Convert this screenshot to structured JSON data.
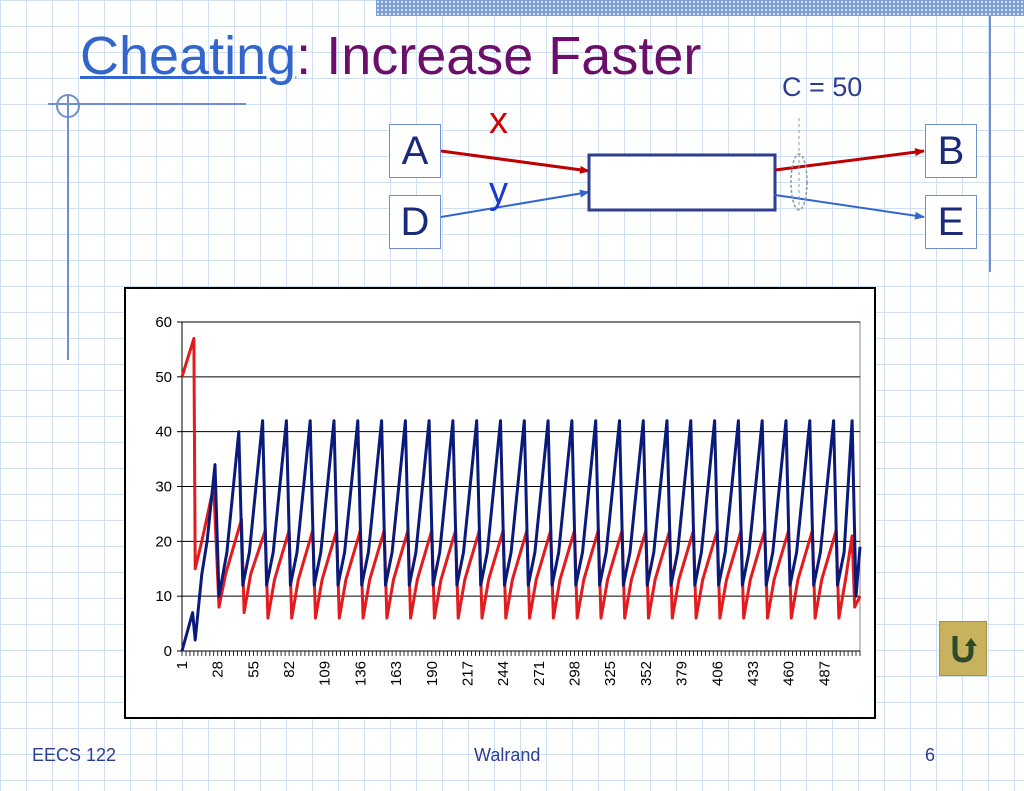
{
  "slide": {
    "title_link": "Cheating",
    "title_colon": ":",
    "title_rest": " Increase Faster",
    "capacity_label": "C = 50",
    "nodes": {
      "a": "A",
      "b": "B",
      "d": "D",
      "e": "E"
    },
    "flows": {
      "x": "x",
      "y": "y"
    }
  },
  "footer": {
    "left": "EECS 122",
    "center": "Walrand",
    "page": "6"
  },
  "colors": {
    "x_series": "#e41a1c",
    "y_series": "#0a1a7a",
    "title_link": "#3366cc",
    "title": "#6b0f6b"
  },
  "icons": {
    "back": "return-arrow-icon"
  },
  "chart_data": {
    "type": "line",
    "ylim": [
      0,
      60
    ],
    "yticks": [
      0,
      10,
      20,
      30,
      40,
      50,
      60
    ],
    "xlim": [
      1,
      514
    ],
    "xticks": [
      1,
      28,
      55,
      82,
      109,
      136,
      163,
      190,
      217,
      244,
      271,
      298,
      325,
      352,
      379,
      406,
      433,
      460,
      487
    ],
    "grid": "horizontal",
    "legend": "none",
    "series": [
      {
        "color": "#e41a1c",
        "points": [
          [
            1,
            50
          ],
          [
            10,
            57
          ],
          [
            11,
            15
          ],
          [
            16,
            20
          ],
          [
            25,
            30
          ],
          [
            29,
            8
          ],
          [
            34,
            14
          ],
          [
            46,
            24
          ],
          [
            48,
            7
          ],
          [
            53,
            14
          ],
          [
            64,
            22
          ],
          [
            66,
            6
          ],
          [
            71,
            13
          ],
          [
            82,
            22
          ],
          [
            84,
            6
          ],
          [
            89,
            13
          ],
          [
            100,
            22
          ],
          [
            102,
            6
          ],
          [
            107,
            13
          ],
          [
            118,
            22
          ],
          [
            120,
            6
          ],
          [
            125,
            13
          ],
          [
            136,
            22
          ],
          [
            138,
            6
          ],
          [
            143,
            13
          ],
          [
            154,
            22
          ],
          [
            156,
            6
          ],
          [
            161,
            13
          ],
          [
            172,
            22
          ],
          [
            174,
            6
          ],
          [
            179,
            13
          ],
          [
            190,
            22
          ],
          [
            192,
            6
          ],
          [
            197,
            13
          ],
          [
            208,
            22
          ],
          [
            210,
            6
          ],
          [
            215,
            13
          ],
          [
            226,
            22
          ],
          [
            228,
            6
          ],
          [
            233,
            13
          ],
          [
            244,
            22
          ],
          [
            246,
            6
          ],
          [
            251,
            13
          ],
          [
            262,
            22
          ],
          [
            264,
            6
          ],
          [
            269,
            13
          ],
          [
            280,
            22
          ],
          [
            282,
            6
          ],
          [
            287,
            13
          ],
          [
            298,
            22
          ],
          [
            300,
            6
          ],
          [
            305,
            13
          ],
          [
            316,
            22
          ],
          [
            318,
            6
          ],
          [
            323,
            13
          ],
          [
            334,
            22
          ],
          [
            336,
            6
          ],
          [
            341,
            13
          ],
          [
            352,
            22
          ],
          [
            354,
            6
          ],
          [
            359,
            13
          ],
          [
            370,
            22
          ],
          [
            372,
            6
          ],
          [
            377,
            13
          ],
          [
            388,
            22
          ],
          [
            390,
            6
          ],
          [
            395,
            13
          ],
          [
            406,
            22
          ],
          [
            408,
            6
          ],
          [
            413,
            13
          ],
          [
            424,
            22
          ],
          [
            426,
            6
          ],
          [
            431,
            13
          ],
          [
            442,
            22
          ],
          [
            444,
            6
          ],
          [
            449,
            13
          ],
          [
            460,
            22
          ],
          [
            462,
            6
          ],
          [
            467,
            13
          ],
          [
            478,
            22
          ],
          [
            480,
            6
          ],
          [
            485,
            13
          ],
          [
            496,
            22
          ],
          [
            498,
            6
          ],
          [
            503,
            13
          ],
          [
            508,
            21
          ],
          [
            510,
            8
          ],
          [
            514,
            10
          ]
        ]
      },
      {
        "color": "#0a1a7a",
        "points": [
          [
            1,
            0
          ],
          [
            9,
            7
          ],
          [
            11,
            2
          ],
          [
            16,
            14
          ],
          [
            20,
            20
          ],
          [
            26,
            34
          ],
          [
            29,
            10
          ],
          [
            35,
            18
          ],
          [
            44,
            40
          ],
          [
            47,
            12
          ],
          [
            52,
            18
          ],
          [
            62,
            42
          ],
          [
            65,
            12
          ],
          [
            70,
            18
          ],
          [
            80,
            42
          ],
          [
            83,
            12
          ],
          [
            88,
            18
          ],
          [
            98,
            42
          ],
          [
            101,
            12
          ],
          [
            106,
            18
          ],
          [
            116,
            42
          ],
          [
            119,
            12
          ],
          [
            124,
            18
          ],
          [
            134,
            42
          ],
          [
            137,
            12
          ],
          [
            142,
            18
          ],
          [
            152,
            42
          ],
          [
            155,
            12
          ],
          [
            160,
            18
          ],
          [
            170,
            42
          ],
          [
            173,
            12
          ],
          [
            178,
            18
          ],
          [
            188,
            42
          ],
          [
            191,
            12
          ],
          [
            196,
            18
          ],
          [
            206,
            42
          ],
          [
            209,
            12
          ],
          [
            214,
            18
          ],
          [
            224,
            42
          ],
          [
            227,
            12
          ],
          [
            232,
            18
          ],
          [
            242,
            42
          ],
          [
            245,
            12
          ],
          [
            250,
            18
          ],
          [
            260,
            42
          ],
          [
            263,
            12
          ],
          [
            268,
            18
          ],
          [
            278,
            42
          ],
          [
            281,
            12
          ],
          [
            286,
            18
          ],
          [
            296,
            42
          ],
          [
            299,
            12
          ],
          [
            304,
            18
          ],
          [
            314,
            42
          ],
          [
            317,
            12
          ],
          [
            322,
            18
          ],
          [
            332,
            42
          ],
          [
            335,
            12
          ],
          [
            340,
            18
          ],
          [
            350,
            42
          ],
          [
            353,
            12
          ],
          [
            358,
            18
          ],
          [
            368,
            42
          ],
          [
            371,
            12
          ],
          [
            376,
            18
          ],
          [
            386,
            42
          ],
          [
            389,
            12
          ],
          [
            394,
            18
          ],
          [
            404,
            42
          ],
          [
            407,
            12
          ],
          [
            412,
            18
          ],
          [
            422,
            42
          ],
          [
            425,
            12
          ],
          [
            430,
            18
          ],
          [
            440,
            42
          ],
          [
            443,
            12
          ],
          [
            448,
            18
          ],
          [
            458,
            42
          ],
          [
            461,
            12
          ],
          [
            466,
            18
          ],
          [
            476,
            42
          ],
          [
            479,
            12
          ],
          [
            484,
            18
          ],
          [
            494,
            42
          ],
          [
            497,
            12
          ],
          [
            502,
            18
          ],
          [
            508,
            42
          ],
          [
            511,
            10
          ],
          [
            514,
            19
          ]
        ]
      }
    ]
  }
}
